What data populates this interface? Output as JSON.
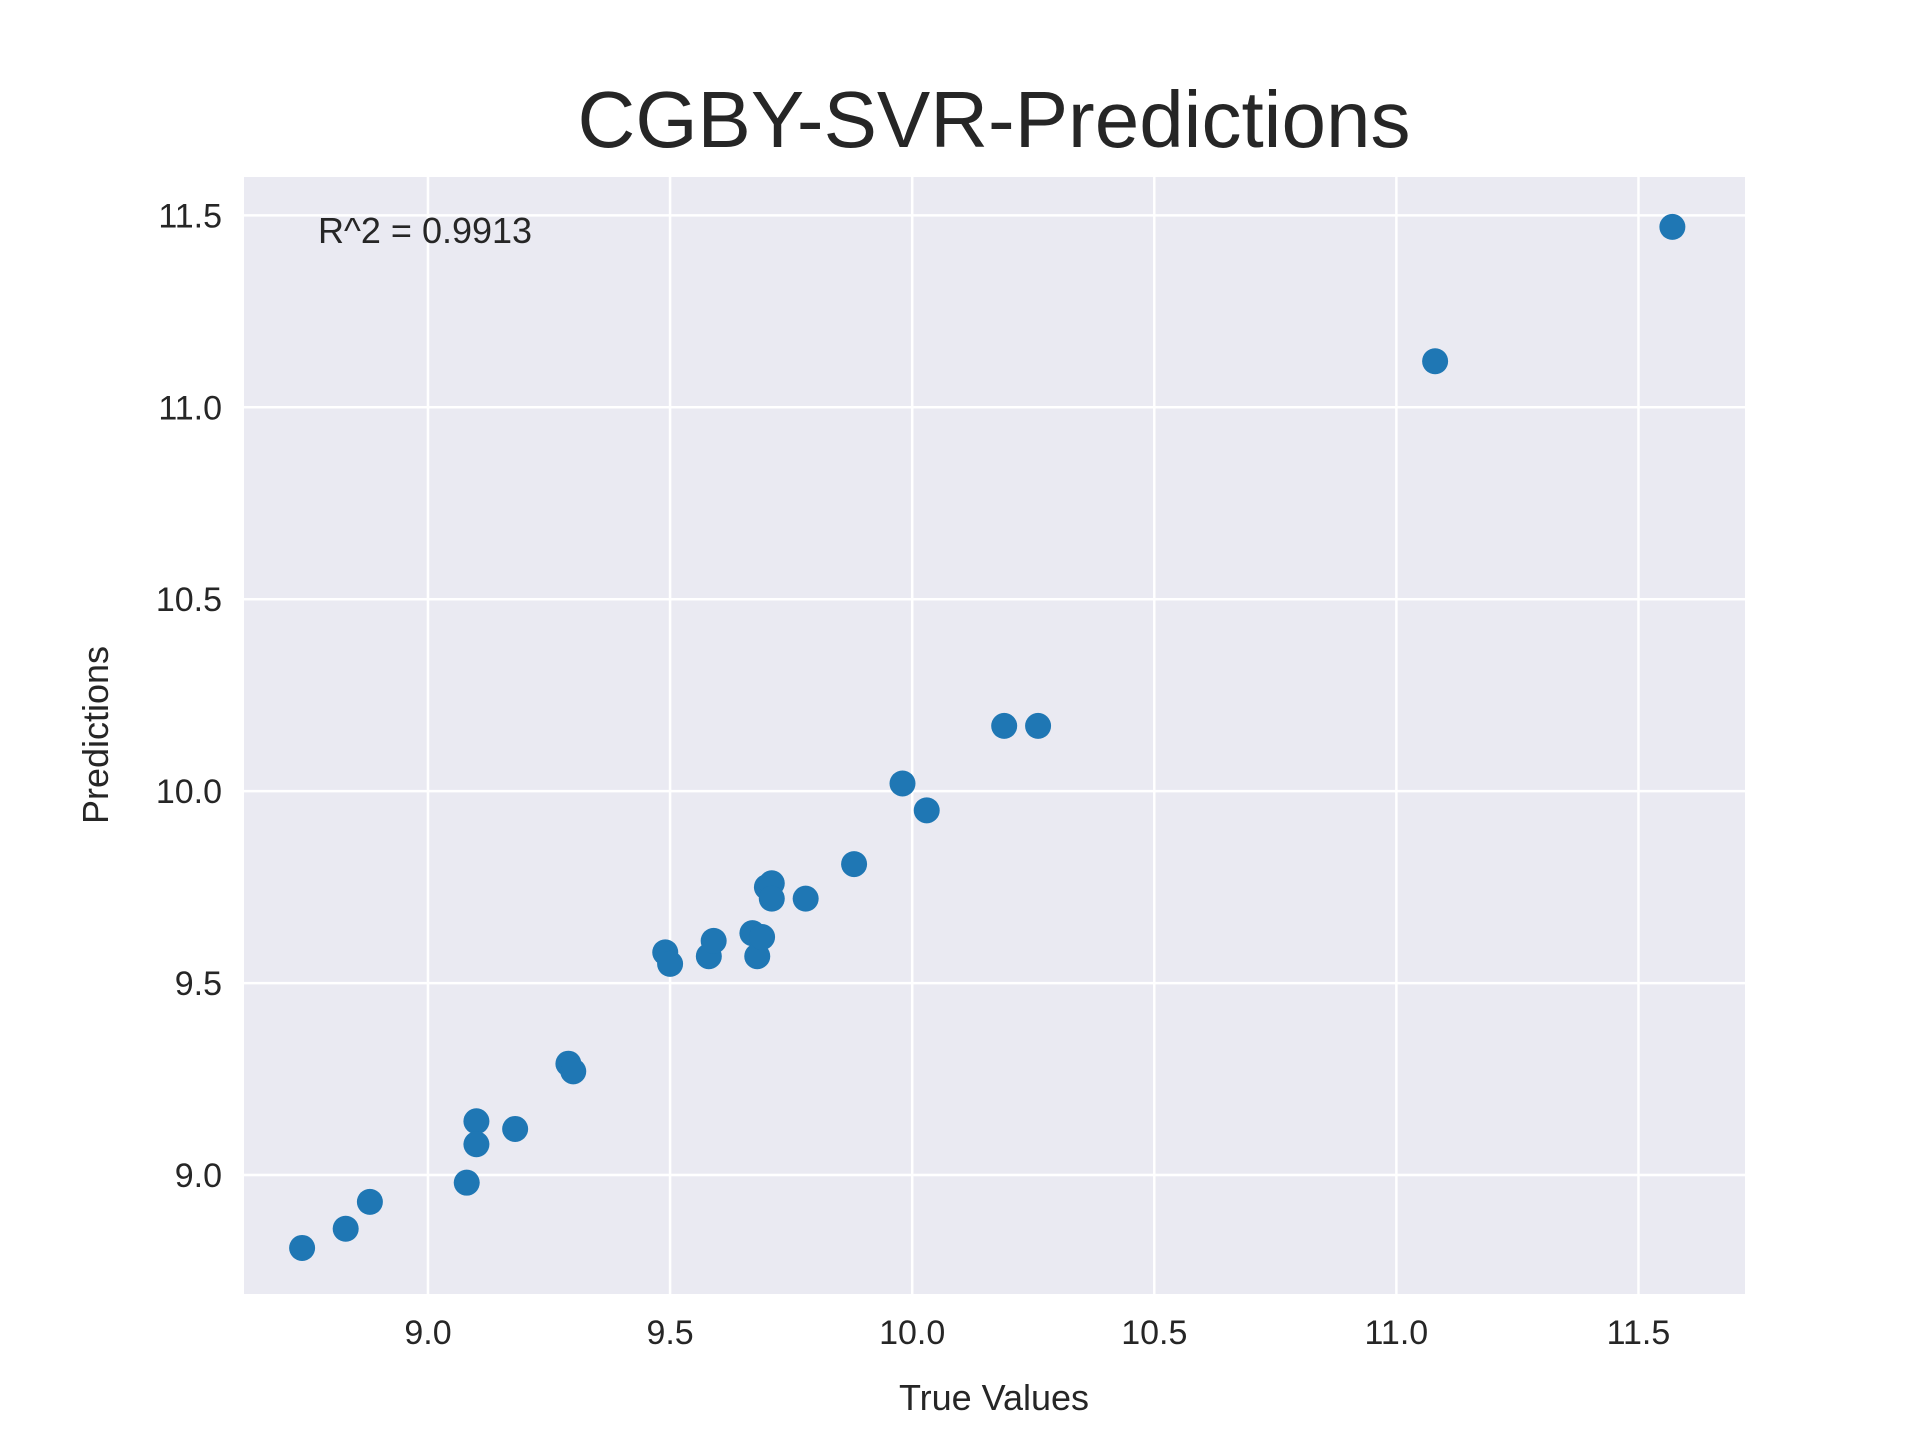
{
  "chart_data": {
    "type": "scatter",
    "title": "CGBY-SVR-Predictions",
    "xlabel": "True Values",
    "ylabel": "Predictions",
    "annotation": "R^2 = 0.9913",
    "xlim": [
      8.62,
      11.72
    ],
    "ylim": [
      8.69,
      11.6
    ],
    "xticks": [
      9.0,
      9.5,
      10.0,
      10.5,
      11.0,
      11.5
    ],
    "xtick_labels": [
      "9.0",
      "9.5",
      "10.0",
      "10.5",
      "11.0",
      "11.5"
    ],
    "yticks": [
      9.0,
      9.5,
      10.0,
      10.5,
      11.0,
      11.5
    ],
    "ytick_labels": [
      "9.0",
      "9.5",
      "10.0",
      "10.5",
      "11.0",
      "11.5"
    ],
    "grid": true,
    "background": "#eaeaf2",
    "marker_color": "#1f77b4",
    "series": [
      {
        "x": [
          8.74,
          8.83,
          8.88,
          9.08,
          9.1,
          9.1,
          9.18,
          9.29,
          9.3,
          9.49,
          9.5,
          9.58,
          9.59,
          9.67,
          9.68,
          9.69,
          9.7,
          9.71,
          9.71,
          9.78,
          9.88,
          9.98,
          10.03,
          10.19,
          10.26,
          11.08,
          11.57
        ],
        "y": [
          8.81,
          8.86,
          8.93,
          8.98,
          9.14,
          9.08,
          9.12,
          9.29,
          9.27,
          9.58,
          9.55,
          9.57,
          9.61,
          9.63,
          9.57,
          9.62,
          9.75,
          9.76,
          9.72,
          9.72,
          9.81,
          10.02,
          9.95,
          10.17,
          10.17,
          11.12,
          11.47
        ]
      }
    ]
  }
}
